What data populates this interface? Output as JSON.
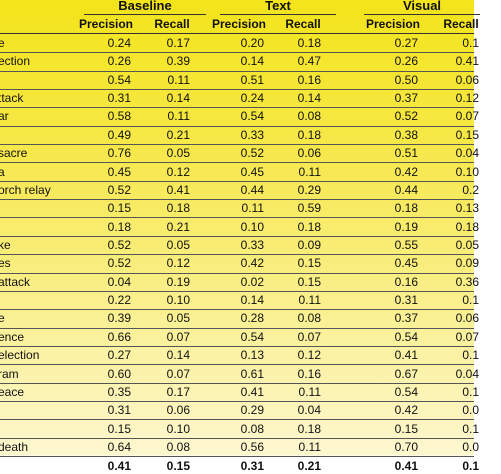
{
  "table": {
    "groups": [
      "Baseline",
      "Text",
      "Visual"
    ],
    "subheaders": [
      "Precision",
      "Recall",
      "Precision",
      "Recall",
      "Precision",
      "Recall"
    ],
    "rows": [
      [
        "e",
        "0.24",
        "0.17",
        "0.20",
        "0.18",
        "0.27",
        "0.1"
      ],
      [
        "ection",
        "0.26",
        "0.39",
        "0.14",
        "0.47",
        "0.26",
        "0.41"
      ],
      [
        null,
        "0.54",
        "0.11",
        "0.51",
        "0.16",
        "0.50",
        "0.06"
      ],
      [
        "ttack",
        "0.31",
        "0.14",
        "0.24",
        "0.14",
        "0.37",
        "0.12"
      ],
      [
        "ar",
        "0.58",
        "0.11",
        "0.54",
        "0.08",
        "0.52",
        "0.07"
      ],
      [
        null,
        "0.49",
        "0.21",
        "0.33",
        "0.18",
        "0.38",
        "0.15"
      ],
      [
        "sacre",
        "0.76",
        "0.05",
        "0.52",
        "0.06",
        "0.51",
        "0.04"
      ],
      [
        "a",
        "0.45",
        "0.12",
        "0.45",
        "0.11",
        "0.42",
        "0.10"
      ],
      [
        "orch relay",
        "0.52",
        "0.41",
        "0.44",
        "0.29",
        "0.44",
        "0.2"
      ],
      [
        null,
        "0.15",
        "0.18",
        "0.11",
        "0.59",
        "0.18",
        "0.13"
      ],
      [
        null,
        "0.18",
        "0.21",
        "0.10",
        "0.18",
        "0.19",
        "0.18"
      ],
      [
        "ke",
        "0.52",
        "0.05",
        "0.33",
        "0.09",
        "0.55",
        "0.05"
      ],
      [
        "es",
        "0.52",
        "0.12",
        "0.42",
        "0.15",
        "0.45",
        "0.09"
      ],
      [
        "attack",
        "0.04",
        "0.19",
        "0.02",
        "0.15",
        "0.16",
        "0.36"
      ],
      [
        null,
        "0.22",
        "0.10",
        "0.14",
        "0.11",
        "0.31",
        "0.1"
      ],
      [
        "e",
        "0.39",
        "0.05",
        "0.28",
        "0.08",
        "0.37",
        "0.06"
      ],
      [
        "ence",
        "0.66",
        "0.07",
        "0.54",
        "0.07",
        "0.54",
        "0.07"
      ],
      [
        "election",
        "0.27",
        "0.14",
        "0.13",
        "0.12",
        "0.41",
        "0.1"
      ],
      [
        "ram",
        "0.60",
        "0.07",
        "0.61",
        "0.16",
        "0.67",
        "0.04"
      ],
      [
        "eace",
        "0.35",
        "0.17",
        "0.41",
        "0.11",
        "0.54",
        "0.1"
      ],
      [
        null,
        "0.31",
        "0.06",
        "0.29",
        "0.04",
        "0.42",
        "0.0"
      ],
      [
        null,
        "0.15",
        "0.10",
        "0.08",
        "0.18",
        "0.15",
        "0.1"
      ],
      [
        "death",
        "0.64",
        "0.08",
        "0.56",
        "0.11",
        "0.70",
        "0.0"
      ]
    ],
    "total": [
      "0.41",
      "0.15",
      "0.31",
      "0.21",
      "0.41",
      "0.1"
    ]
  }
}
